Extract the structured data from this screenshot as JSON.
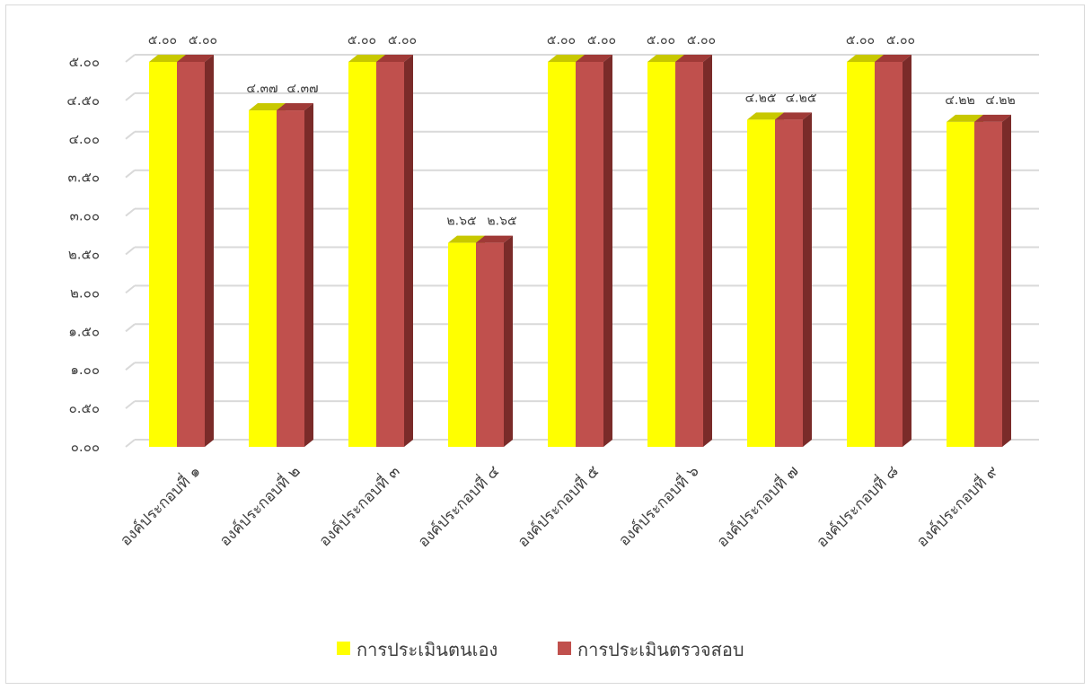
{
  "chart_data": {
    "type": "bar",
    "categories": [
      "องค์ประกอบที่ ๑",
      "องค์ประกอบที่ ๒",
      "องค์ประกอบที่ ๓",
      "องค์ประกอบที่ ๔",
      "องค์ประกอบที่ ๕",
      "องค์ประกอบที่ ๖",
      "องค์ประกอบที่ ๗",
      "องค์ประกอบที่ ๘",
      "องค์ประกอบที่ ๙"
    ],
    "series": [
      {
        "name": "การประเมินตนเอง",
        "values": [
          5.0,
          4.37,
          5.0,
          2.65,
          5.0,
          5.0,
          4.25,
          5.0,
          4.22
        ],
        "labels": [
          "๕.๐๐",
          "๔.๓๗",
          "๕.๐๐",
          "๒.๖๕",
          "๕.๐๐",
          "๕.๐๐",
          "๔.๒๕",
          "๕.๐๐",
          "๔.๒๒"
        ],
        "color": "#ffff00",
        "top_color": "#c8c800",
        "side_color": "#9a9a00"
      },
      {
        "name": "การประเมินตรวจสอบ",
        "values": [
          5.0,
          4.37,
          5.0,
          2.65,
          5.0,
          5.0,
          4.25,
          5.0,
          4.22
        ],
        "labels": [
          "๕.๐๐",
          "๔.๓๗",
          "๕.๐๐",
          "๒.๖๕",
          "๕.๐๐",
          "๕.๐๐",
          "๔.๒๕",
          "๕.๐๐",
          "๔.๒๒"
        ],
        "color": "#c0504d",
        "top_color": "#a03a37",
        "side_color": "#7a2b29"
      }
    ],
    "y_ticks": [
      {
        "value": 0,
        "label": "๐.๐๐"
      },
      {
        "value": 0.5,
        "label": "๐.๕๐"
      },
      {
        "value": 1,
        "label": "๑.๐๐"
      },
      {
        "value": 1.5,
        "label": "๑.๕๐"
      },
      {
        "value": 2,
        "label": "๒.๐๐"
      },
      {
        "value": 2.5,
        "label": "๒.๕๐"
      },
      {
        "value": 3,
        "label": "๓.๐๐"
      },
      {
        "value": 3.5,
        "label": "๓.๕๐"
      },
      {
        "value": 4,
        "label": "๔.๐๐"
      },
      {
        "value": 4.5,
        "label": "๔.๕๐"
      },
      {
        "value": 5,
        "label": "๕.๐๐"
      }
    ],
    "ylim": [
      0,
      5
    ],
    "grid": true,
    "legend_position": "bottom",
    "title": "",
    "xlabel": "",
    "ylabel": ""
  }
}
